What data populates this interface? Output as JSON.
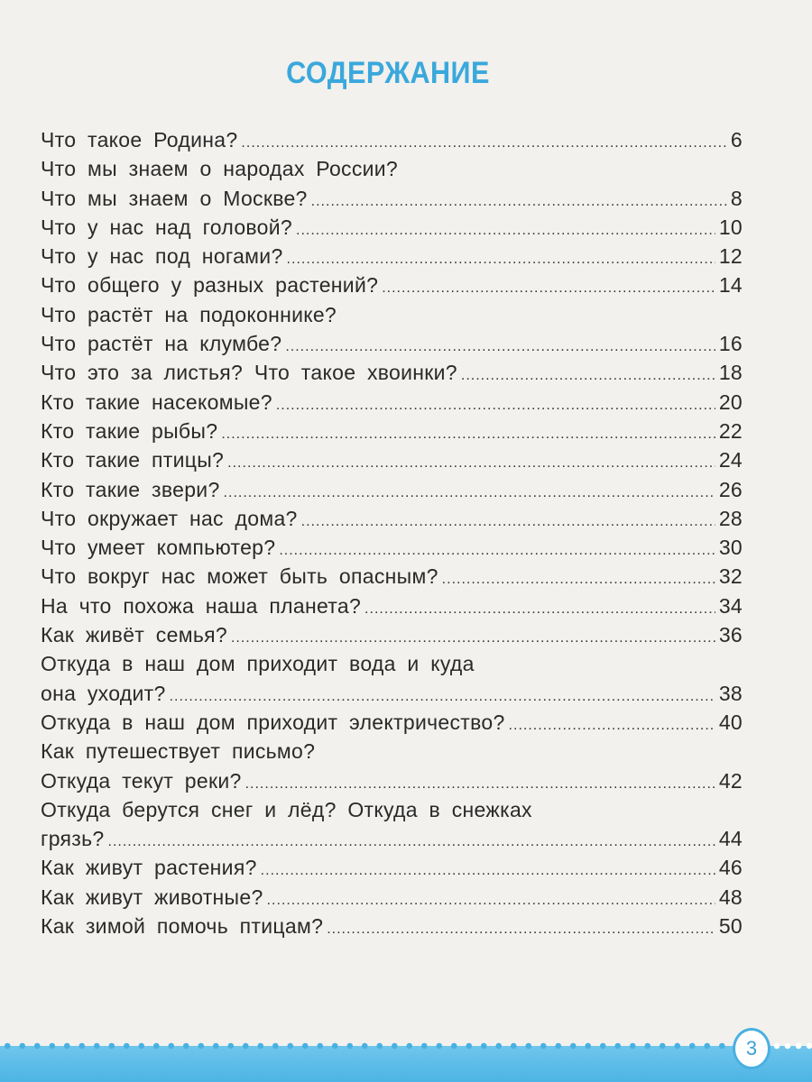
{
  "title": "СОДЕРЖАНИЕ",
  "entries": [
    {
      "text": "Что такое Родина?",
      "page": "6"
    },
    {
      "text": "Что мы знаем о народах России?",
      "page": ""
    },
    {
      "text": "Что мы знаем о Москве?",
      "page": "8"
    },
    {
      "text": "Что у нас над головой?",
      "page": "10"
    },
    {
      "text": "Что у нас под ногами?",
      "page": "12"
    },
    {
      "text": "Что общего у разных растений?",
      "page": "14"
    },
    {
      "text": "Что растёт на подоконнике?",
      "page": ""
    },
    {
      "text": "Что растёт на клумбе?",
      "page": "16"
    },
    {
      "text": "Что это за листья? Что такое хвоинки?",
      "page": "18"
    },
    {
      "text": "Кто такие насекомые?",
      "page": "20"
    },
    {
      "text": "Кто такие рыбы?",
      "page": "22"
    },
    {
      "text": "Кто такие птицы?",
      "page": "24"
    },
    {
      "text": "Кто такие звери?",
      "page": "26"
    },
    {
      "text": "Что окружает нас дома?",
      "page": "28"
    },
    {
      "text": "Что умеет компьютер?",
      "page": "30"
    },
    {
      "text": "Что вокруг нас может быть опасным?",
      "page": "32"
    },
    {
      "text": "На что похожа наша планета?",
      "page": "34"
    },
    {
      "text": "Как живёт семья?",
      "page": "36"
    },
    {
      "text": "Откуда в наш дом приходит вода и куда",
      "cont": "она уходит?",
      "page": "38"
    },
    {
      "text": "Откуда в наш дом приходит электричество?",
      "page": "40"
    },
    {
      "text": "Как путешествует письмо?",
      "page": ""
    },
    {
      "text": "Откуда текут реки?",
      "page": "42"
    },
    {
      "text": "Откуда берутся снег и лёд? Откуда в снежках",
      "cont": "грязь?",
      "page": "44"
    },
    {
      "text": "Как живут растения?",
      "page": "46"
    },
    {
      "text": "Как живут животные?",
      "page": "48"
    },
    {
      "text": "Как зимой помочь птицам?",
      "page": "50"
    }
  ],
  "page_number": "3",
  "colors": {
    "accent": "#3aa8dc",
    "band": "#5bbde8",
    "text": "#2a2a2a"
  }
}
